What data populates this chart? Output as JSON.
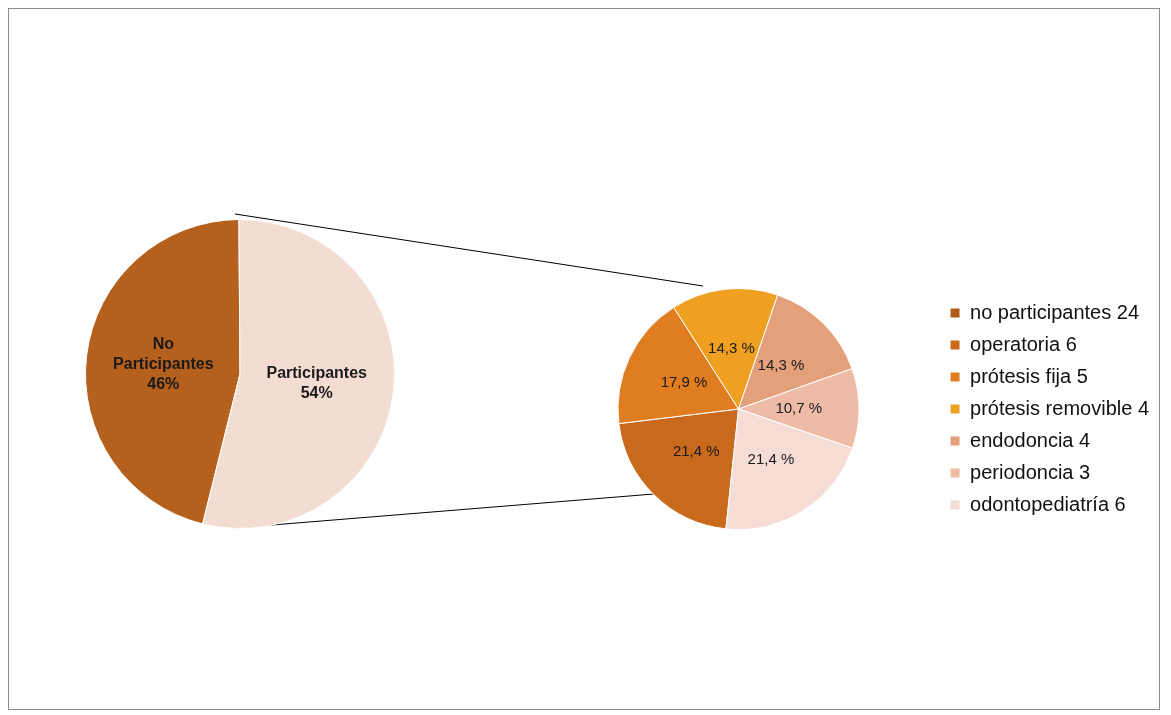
{
  "chart_data": [
    {
      "type": "pie",
      "categories": [
        "No Participantes",
        "Participantes"
      ],
      "values": [
        46,
        54
      ],
      "value_labels": [
        "46%",
        "54%"
      ],
      "colors": [
        "#b5601c",
        "#f3ddd2"
      ],
      "legend": false
    },
    {
      "type": "pie",
      "categories": [
        "no participantes 24",
        "operatoria 6",
        "prótesis fija 5",
        "prótesis removible 4",
        "endodoncia 4",
        "periodoncia 3",
        "odontopediatría 6"
      ],
      "values": [
        null,
        21.4,
        17.9,
        14.3,
        14.3,
        10.7,
        21.4
      ],
      "value_labels": [
        null,
        "21,4 %",
        "17,9 %",
        "14,3 %",
        "14,3 %",
        "10,7 %",
        "21,4 %"
      ],
      "colors": [
        "#b05a18",
        "#c9691c",
        "#e07d20",
        "#f0a020",
        "#e4a07a",
        "#eebca6",
        "#f5dcd4"
      ],
      "legend": "right"
    }
  ]
}
